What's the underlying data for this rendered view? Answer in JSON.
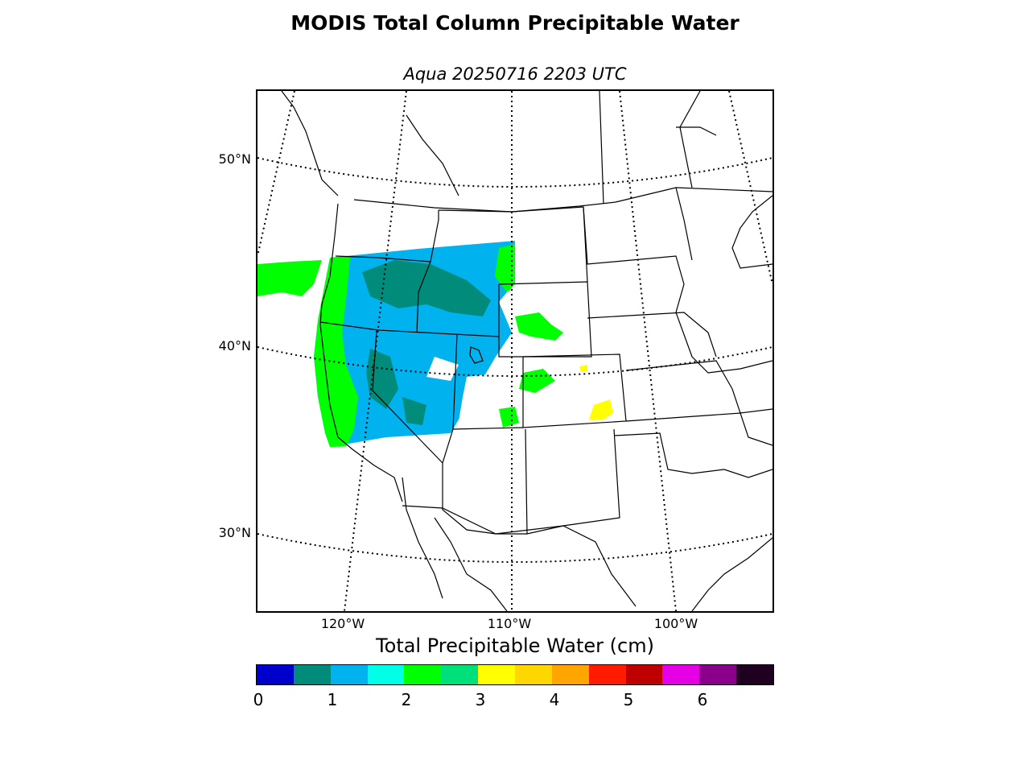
{
  "header": {
    "title": "MODIS Total Column Precipitable Water",
    "subtitle": "Aqua 20250716 2203 UTC"
  },
  "map": {
    "lat_labels": [
      "50°N",
      "40°N",
      "30°N"
    ],
    "lon_labels": [
      "120°W",
      "110°W",
      "100°W"
    ],
    "graticule_style": "dotted",
    "land_color": "#ffffff",
    "border_color": "#000000"
  },
  "colorbar": {
    "title": "Total Precipitable Water (cm)",
    "colors": [
      "#0000cd",
      "#008b7a",
      "#00b2ee",
      "#00ffe6",
      "#00ff00",
      "#00e07a",
      "#ffff00",
      "#ffd700",
      "#ffa500",
      "#ff1a00",
      "#bf0000",
      "#e600e6",
      "#8b008b",
      "#200020"
    ],
    "tick_labels": [
      "0",
      "1",
      "2",
      "3",
      "4",
      "5",
      "6"
    ],
    "range": [
      0,
      7
    ]
  }
}
